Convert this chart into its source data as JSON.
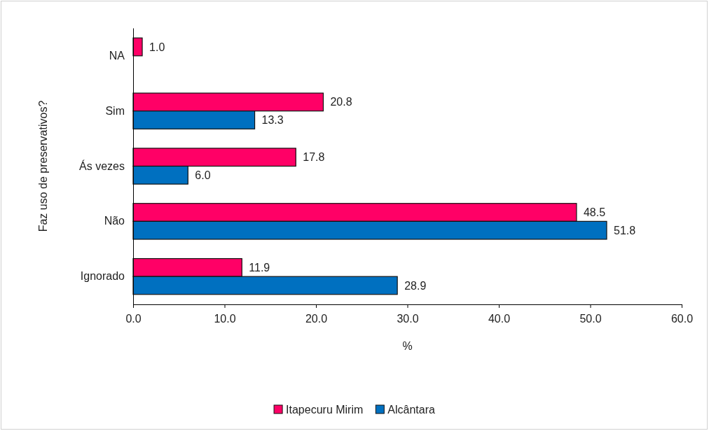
{
  "chart_data": {
    "type": "bar",
    "orientation": "horizontal",
    "xlabel": "%",
    "ylabel": "Faz uso de preservativos?",
    "categories": [
      "NA",
      "Sim",
      "Ás vezes",
      "Não",
      "Ignorado"
    ],
    "series": [
      {
        "name": "Itapecuru Mirim",
        "color": "#ff0066",
        "values": [
          1.0,
          20.8,
          17.8,
          48.5,
          11.9
        ],
        "value_labels": [
          "1.0",
          "20.8",
          "17.8",
          "48.5",
          "11.9"
        ]
      },
      {
        "name": "Alcântara",
        "color": "#0070c0",
        "values": [
          null,
          13.3,
          6.0,
          51.8,
          28.9
        ],
        "value_labels": [
          null,
          "13.3",
          "6.0",
          "51.8",
          "28.9"
        ]
      }
    ],
    "xlim": [
      0,
      60
    ],
    "xticks": [
      {
        "value": 0,
        "label": "0.0"
      },
      {
        "value": 10,
        "label": "10.0"
      },
      {
        "value": 20,
        "label": "20.0"
      },
      {
        "value": 30,
        "label": "30.0"
      },
      {
        "value": 40,
        "label": "40.0"
      },
      {
        "value": 50,
        "label": "50.0"
      },
      {
        "value": 60,
        "label": "60.0"
      }
    ],
    "grid": false,
    "legend": "bottom"
  }
}
